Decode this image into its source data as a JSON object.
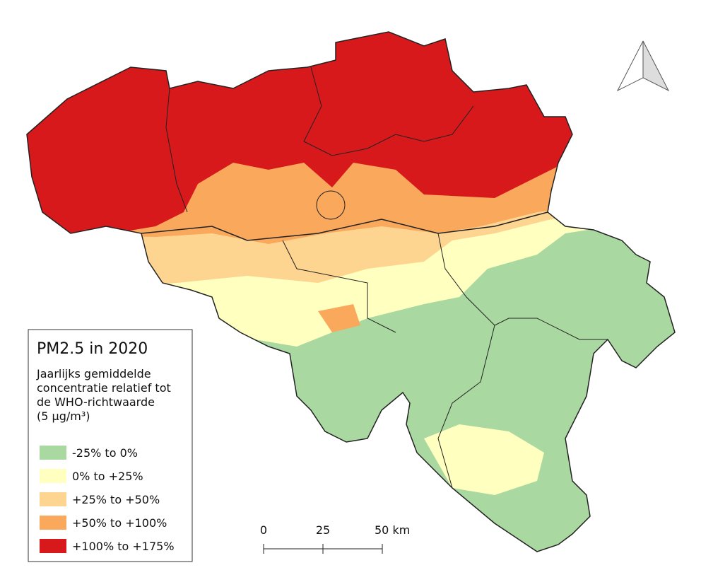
{
  "legend": {
    "title": "PM2.5 in 2020",
    "description": [
      "Jaarlijks gemiddelde",
      "concentratie relatief tot",
      "de WHO-richtwaarde",
      "(5 µg/m³)"
    ],
    "items": [
      {
        "label": "-25% to 0%",
        "color": "#a9d9a0"
      },
      {
        "label": "0% to +25%",
        "color": "#ffffc0"
      },
      {
        "label": "+25% to +50%",
        "color": "#fdd590"
      },
      {
        "label": "+50% to +100%",
        "color": "#f9a85c"
      },
      {
        "label": "+100% to +175%",
        "color": "#d7191c"
      }
    ]
  },
  "scale_bar": {
    "labels": [
      "0",
      "25",
      "50 km"
    ]
  }
}
